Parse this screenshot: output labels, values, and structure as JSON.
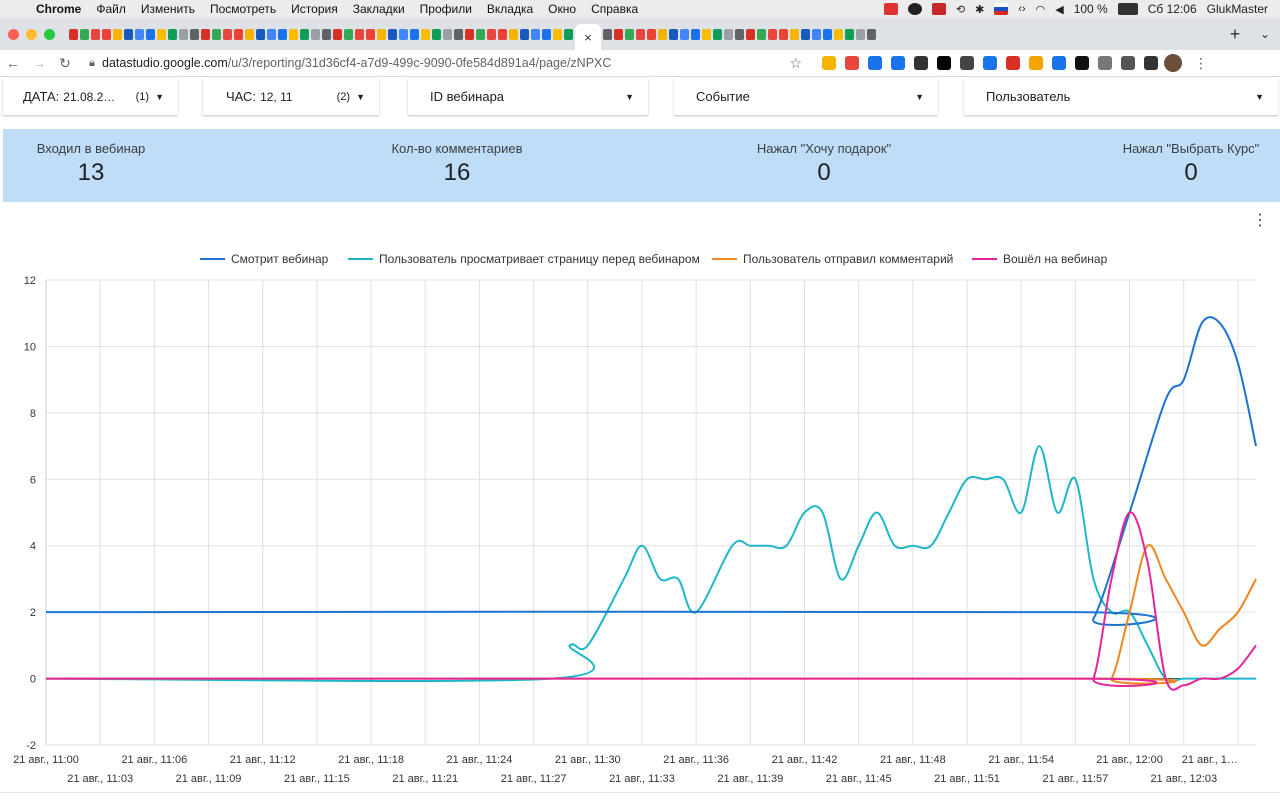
{
  "menubar": {
    "items": [
      "Chrome",
      "Файл",
      "Изменить",
      "Посмотреть",
      "История",
      "Закладки",
      "Профили",
      "Вкладка",
      "Окно",
      "Справка"
    ],
    "battery": "100 %",
    "clock": "Сб 12:06",
    "user": "GlukMaster"
  },
  "browser": {
    "url_host": "datastudio.google.com",
    "url_path": "/u/3/reporting/31d36cf4-a7d9-499c-9090-0fe584d891a4/page/zNPXC",
    "tab_close": "×",
    "new_tab": "+"
  },
  "filters": [
    {
      "label": "ДАТА:",
      "value": "21.08.2…",
      "count": "(1)"
    },
    {
      "label": "ЧАС:",
      "value": "12, 11",
      "count": "(2)"
    },
    {
      "label": "ID вебинара",
      "value": "",
      "count": ""
    },
    {
      "label": "Событие",
      "value": "",
      "count": ""
    },
    {
      "label": "Пользователь",
      "value": "",
      "count": ""
    }
  ],
  "scorecards": [
    {
      "title": "Входил в вебинар",
      "value": "13"
    },
    {
      "title": "Кол-во комментариев",
      "value": "16"
    },
    {
      "title": "Нажал \"Хочу подарок\"",
      "value": "0"
    },
    {
      "title": "Нажал \"Выбрать Курс\"",
      "value": "0"
    }
  ],
  "colors": {
    "blue": "#1c73d1",
    "teal": "#1eb7c8",
    "orange": "#f0861e",
    "magenta": "#e5259a",
    "scorebar": "#bfddf7"
  },
  "chart_data": {
    "type": "line",
    "legend_position": "top",
    "grid": true,
    "ylim": [
      -2,
      12
    ],
    "yticks": [
      -2,
      0,
      2,
      4,
      6,
      8,
      10,
      12
    ],
    "xlabels_top": [
      "21 авг., 11:00",
      "21 авг., 11:06",
      "21 авг., 11:12",
      "21 авг., 11:18",
      "21 авг., 11:24",
      "21 авг., 11:30",
      "21 авг., 11:36",
      "21 авг., 11:42",
      "21 авг., 11:48",
      "21 авг., 11:54",
      "21 авг., 12:00",
      "21 авг., 1…"
    ],
    "xlabels_bottom": [
      "21 авг., 11:03",
      "21 авг., 11:09",
      "21 авг., 11:15",
      "21 авг., 11:21",
      "21 авг., 11:27",
      "21 авг., 11:33",
      "21 авг., 11:39",
      "21 авг., 11:45",
      "21 авг., 11:51",
      "21 авг., 11:57",
      "21 авг., 12:03"
    ],
    "x_minutes_from": "21 авг., 11:00",
    "series": [
      {
        "name": "Смотрит вебинар",
        "color": "#1c73d1",
        "points": [
          [
            0,
            2
          ],
          [
            57,
            2
          ],
          [
            58,
            1.8
          ],
          [
            60,
            5
          ],
          [
            62,
            8.4
          ],
          [
            63,
            9
          ],
          [
            64,
            10.7
          ],
          [
            65,
            10.7
          ],
          [
            66,
            9.5
          ],
          [
            67,
            7
          ]
        ]
      },
      {
        "name": "Пользователь просматривает страницу перед вебинаром",
        "color": "#1eb7c8",
        "points": [
          [
            0,
            0
          ],
          [
            28,
            0
          ],
          [
            29,
            1
          ],
          [
            30,
            1
          ],
          [
            32,
            3
          ],
          [
            33,
            4
          ],
          [
            34,
            3
          ],
          [
            35,
            3
          ],
          [
            36,
            2
          ],
          [
            38,
            4
          ],
          [
            39,
            4
          ],
          [
            40,
            4
          ],
          [
            41,
            4
          ],
          [
            42,
            5
          ],
          [
            43,
            5
          ],
          [
            44,
            3
          ],
          [
            45,
            4
          ],
          [
            46,
            5
          ],
          [
            47,
            4
          ],
          [
            48,
            4
          ],
          [
            49,
            4
          ],
          [
            50,
            5
          ],
          [
            51,
            6
          ],
          [
            52,
            6
          ],
          [
            53,
            6
          ],
          [
            54,
            5
          ],
          [
            55,
            7
          ],
          [
            56,
            5
          ],
          [
            57,
            6
          ],
          [
            58,
            3
          ],
          [
            59,
            2
          ],
          [
            60,
            2
          ],
          [
            61,
            1
          ],
          [
            62,
            0
          ],
          [
            63,
            0
          ],
          [
            64,
            0
          ],
          [
            67,
            0
          ]
        ]
      },
      {
        "name": "Пользователь отправил комментарий",
        "color": "#f0861e",
        "points": [
          [
            0,
            0
          ],
          [
            58,
            0
          ],
          [
            59,
            0
          ],
          [
            60,
            2
          ],
          [
            61,
            4
          ],
          [
            62,
            3
          ],
          [
            63,
            2
          ],
          [
            64,
            1
          ],
          [
            65,
            1.5
          ],
          [
            66,
            2
          ],
          [
            67,
            3
          ]
        ]
      },
      {
        "name": "Вошёл на вебинар",
        "color": "#e5259a",
        "points": [
          [
            0,
            0
          ],
          [
            57,
            0
          ],
          [
            58,
            0
          ],
          [
            59,
            3
          ],
          [
            60,
            5
          ],
          [
            61,
            3.5
          ],
          [
            62,
            0
          ],
          [
            63,
            -0.2
          ],
          [
            64,
            0
          ],
          [
            65,
            0
          ],
          [
            66,
            0.3
          ],
          [
            67,
            1
          ]
        ]
      }
    ]
  }
}
